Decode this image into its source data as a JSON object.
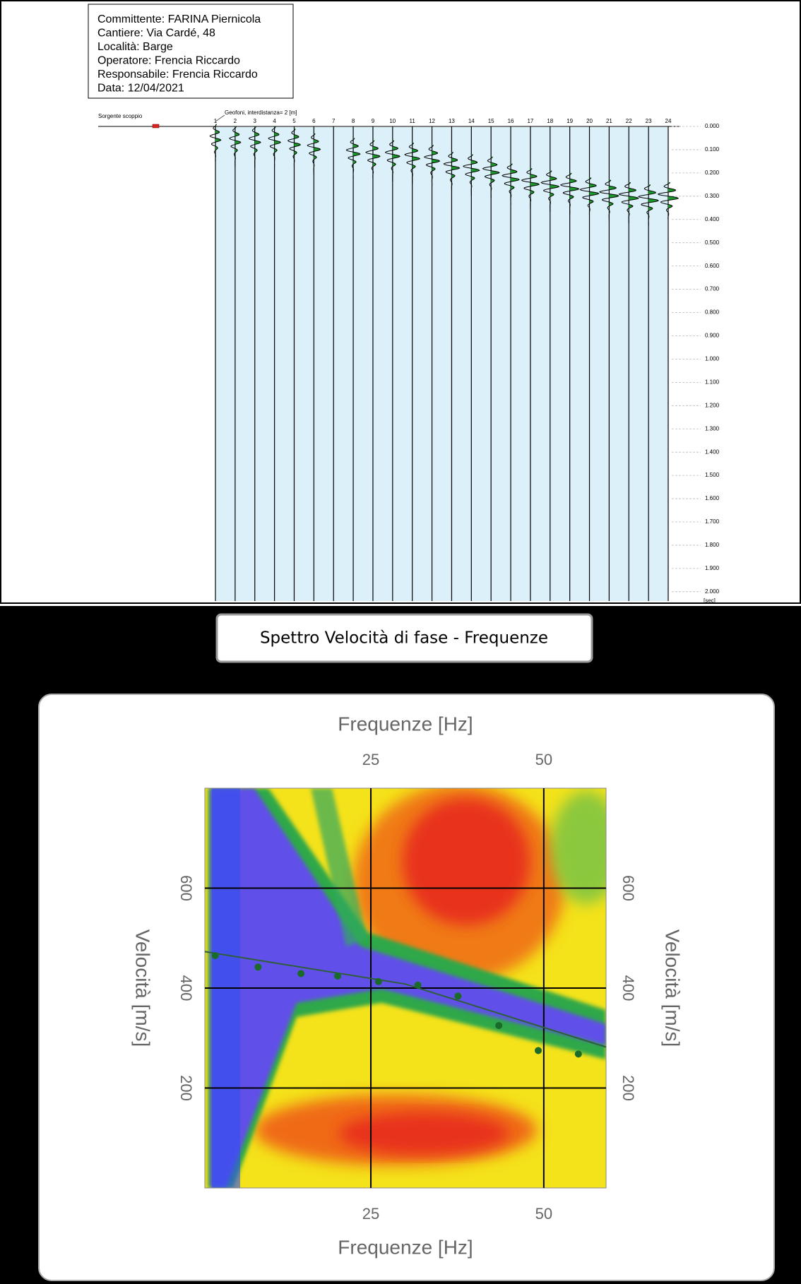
{
  "header": {
    "lines": [
      "Committente: FARINA Piernicola",
      "Cantiere: Via Cardé, 48",
      "Località: Barge",
      "Operatore: Frencia Riccardo",
      "Responsabile: Frencia Riccardo",
      "Data: 12/04/2021"
    ]
  },
  "chart_data": [
    {
      "type": "seismogram",
      "source_label": "Sorgente scoppio",
      "geophone_label": "Geofoni, interdistanza= 2 [m]",
      "categories": [
        "1",
        "2",
        "3",
        "4",
        "5",
        "6",
        "7",
        "8",
        "9",
        "10",
        "11",
        "12",
        "13",
        "14",
        "15",
        "16",
        "17",
        "18",
        "19",
        "20",
        "21",
        "22",
        "23",
        "24"
      ],
      "values": [
        0.05,
        0.06,
        0.06,
        0.06,
        0.07,
        0.09,
        null,
        0.11,
        0.12,
        0.12,
        0.13,
        0.14,
        0.17,
        0.18,
        0.19,
        0.22,
        0.24,
        0.25,
        0.26,
        0.28,
        0.29,
        0.3,
        0.31,
        0.3
      ],
      "ylim": [
        0,
        2.04
      ],
      "yticks": [
        {
          "value": 0,
          "label": "0.000"
        },
        {
          "value": 0.1,
          "label": "0.100"
        },
        {
          "value": 0.2,
          "label": "0.200"
        },
        {
          "value": 0.3,
          "label": "0.300"
        },
        {
          "value": 0.4,
          "label": "0.400"
        },
        {
          "value": 0.5,
          "label": "0.500"
        },
        {
          "value": 0.6,
          "label": "0.600"
        },
        {
          "value": 0.7,
          "label": "0.700"
        },
        {
          "value": 0.8,
          "label": "0.800"
        },
        {
          "value": 0.9,
          "label": "0.900"
        },
        {
          "value": 1.0,
          "label": "1.000"
        },
        {
          "value": 1.1,
          "label": "1.100"
        },
        {
          "value": 1.2,
          "label": "1.200"
        },
        {
          "value": 1.3,
          "label": "1.300"
        },
        {
          "value": 1.4,
          "label": "1.400"
        },
        {
          "value": 1.5,
          "label": "1.500"
        },
        {
          "value": 1.6,
          "label": "1.600"
        },
        {
          "value": 1.7,
          "label": "1.700"
        },
        {
          "value": 1.8,
          "label": "1.800"
        },
        {
          "value": 1.9,
          "label": "1.900"
        },
        {
          "value": 2.0,
          "label": "2.000"
        }
      ],
      "ylabel": "[sec]"
    },
    {
      "type": "dispersion",
      "title": "Spettro Velocità di fase - Frequenze",
      "xlabel": "Frequenze [Hz]",
      "ylabel": "Velocità [m/s]",
      "xlim": [
        1,
        59
      ],
      "ylim": [
        0,
        800
      ],
      "xticks": [
        25,
        50
      ],
      "yticks": [
        200,
        400,
        600
      ],
      "grid": true,
      "picks": {
        "x": [
          2.5,
          8.7,
          14.9,
          20.2,
          26.1,
          31.8,
          37.6,
          43.5,
          49.2,
          55.0
        ],
        "values": [
          465,
          442,
          429,
          424,
          413,
          406,
          384,
          325,
          275,
          268
        ]
      },
      "curve": {
        "x": [
          1,
          30,
          59
        ],
        "values": [
          473,
          408,
          282
        ]
      }
    }
  ]
}
